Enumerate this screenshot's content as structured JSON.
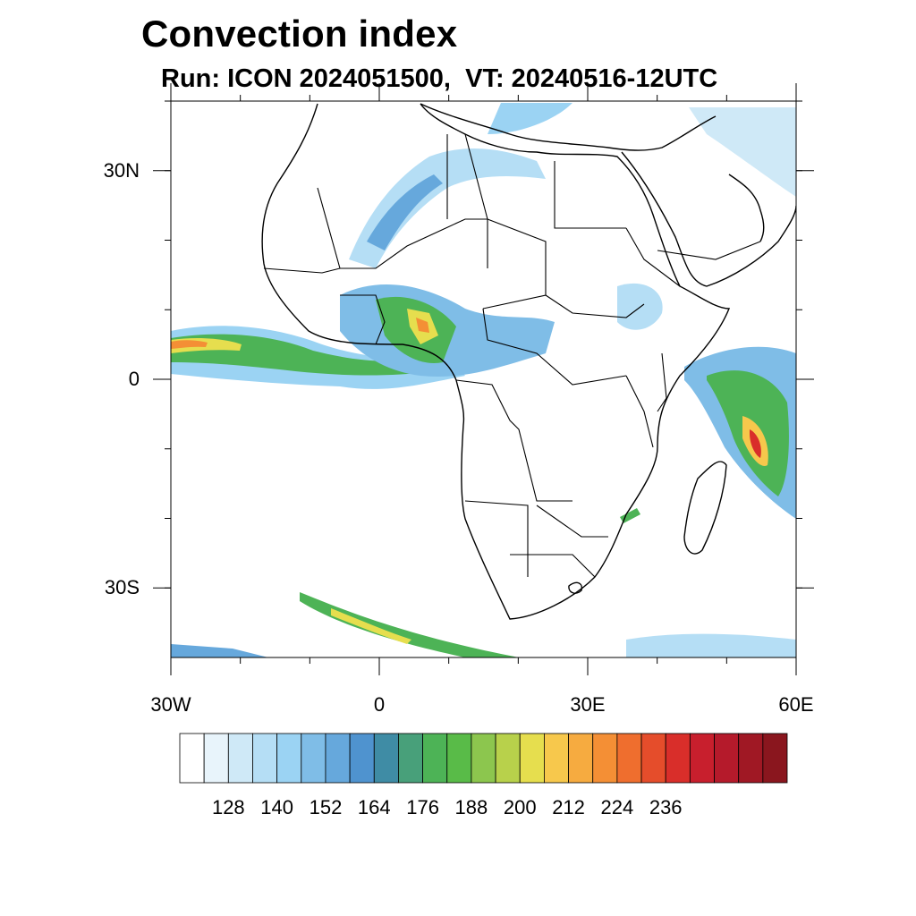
{
  "title": "Convection index",
  "subtitle": "Run: ICON 2024051500,  VT: 20240516-12UTC",
  "map": {
    "region": "Africa",
    "extent": {
      "lon": [
        -30,
        60
      ],
      "lat": [
        -40,
        40
      ]
    },
    "lat_ticks": [
      {
        "value": 30,
        "label": "30N"
      },
      {
        "value": 0,
        "label": "0"
      },
      {
        "value": -30,
        "label": "30S"
      }
    ],
    "lon_ticks": [
      {
        "value": -30,
        "label": "30W"
      },
      {
        "value": 0,
        "label": "0"
      },
      {
        "value": 30,
        "label": "30E"
      },
      {
        "value": 60,
        "label": "60E"
      }
    ]
  },
  "colorbar": {
    "colors": [
      "#ffffff",
      "#e8f4fb",
      "#cfe9f7",
      "#b5def5",
      "#9bd3f3",
      "#7fbde7",
      "#66a8dc",
      "#4f93cf",
      "#3f8ca5",
      "#48a07a",
      "#4db356",
      "#59bb48",
      "#8cc64e",
      "#b8d14b",
      "#e6de4e",
      "#f7c84c",
      "#f6ab40",
      "#f48f35",
      "#ef6e2e",
      "#e54d2b",
      "#d92e2a",
      "#c81f2d",
      "#b51a2b",
      "#a01824",
      "#8a161e"
    ],
    "labels": [
      "128",
      "140",
      "152",
      "164",
      "176",
      "188",
      "200",
      "212",
      "224",
      "236"
    ]
  },
  "colors": {
    "land_outline": "#000000",
    "background": "#ffffff"
  }
}
